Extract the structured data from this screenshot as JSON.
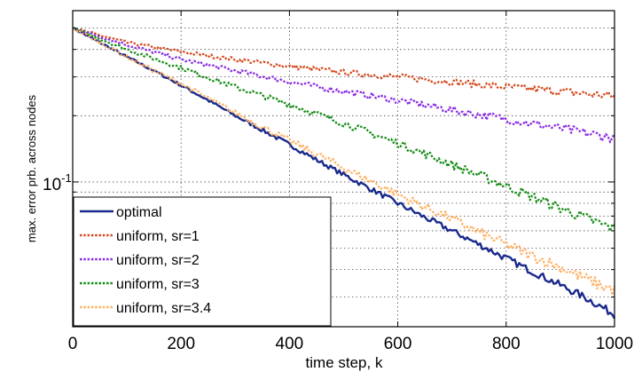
{
  "chart_data": {
    "type": "line",
    "title": "",
    "xlabel": "time step, k",
    "ylabel": "max. error prb. across nodes",
    "xlim": [
      0,
      1000
    ],
    "ylim": [
      0.022,
      0.6
    ],
    "yscale": "log",
    "grid": true,
    "legend_position": "bottom-left",
    "x_ticks": [
      0,
      200,
      400,
      600,
      800,
      1000
    ],
    "x_tick_labels": [
      "0",
      "200",
      "400",
      "600",
      "800",
      "1000"
    ],
    "y_major_tick_value": 0.1,
    "y_major_tick_base": "10",
    "y_major_tick_exp": "-1",
    "series": [
      {
        "name": "optimal",
        "color": "#1a2a8c",
        "style": "solid",
        "x": [
          0,
          50,
          100,
          150,
          200,
          250,
          300,
          350,
          400,
          450,
          500,
          550,
          600,
          650,
          700,
          750,
          800,
          850,
          900,
          950,
          1000
        ],
        "y": [
          0.5,
          0.43,
          0.37,
          0.32,
          0.275,
          0.235,
          0.2,
          0.172,
          0.148,
          0.126,
          0.108,
          0.093,
          0.08,
          0.069,
          0.06,
          0.052,
          0.045,
          0.039,
          0.034,
          0.0295,
          0.025
        ]
      },
      {
        "name": "uniform, sr=1",
        "color": "#d44a1e",
        "style": "dotted",
        "x": [
          0,
          100,
          200,
          300,
          400,
          500,
          600,
          700,
          800,
          900,
          1000
        ],
        "y": [
          0.5,
          0.43,
          0.39,
          0.36,
          0.335,
          0.315,
          0.3,
          0.285,
          0.27,
          0.258,
          0.245
        ]
      },
      {
        "name": "uniform, sr=2",
        "color": "#8a2be2",
        "style": "dotted",
        "x": [
          0,
          100,
          200,
          300,
          400,
          500,
          600,
          700,
          800,
          900,
          1000
        ],
        "y": [
          0.5,
          0.42,
          0.36,
          0.32,
          0.285,
          0.258,
          0.235,
          0.212,
          0.193,
          0.175,
          0.158
        ]
      },
      {
        "name": "uniform, sr=3",
        "color": "#148c14",
        "style": "dotted",
        "x": [
          0,
          100,
          200,
          300,
          400,
          500,
          600,
          700,
          800,
          900,
          1000
        ],
        "y": [
          0.5,
          0.4,
          0.33,
          0.27,
          0.225,
          0.185,
          0.15,
          0.12,
          0.096,
          0.076,
          0.061
        ]
      },
      {
        "name": "uniform, sr=3.4",
        "color": "#ffb266",
        "style": "dotted",
        "x": [
          0,
          50,
          100,
          150,
          200,
          250,
          300,
          350,
          400,
          450,
          500,
          550,
          600,
          650,
          700,
          750,
          800,
          850,
          900,
          950,
          1000
        ],
        "y": [
          0.5,
          0.43,
          0.37,
          0.32,
          0.28,
          0.24,
          0.206,
          0.178,
          0.154,
          0.134,
          0.116,
          0.101,
          0.088,
          0.077,
          0.068,
          0.059,
          0.052,
          0.046,
          0.041,
          0.036,
          0.032
        ]
      }
    ]
  }
}
